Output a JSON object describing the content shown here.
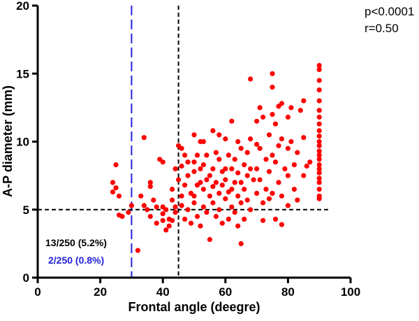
{
  "stats": {
    "p_value": "p<0.0001",
    "r_value": "r=0.50"
  },
  "annotations": {
    "black_count": "13/250 (5.2%)",
    "blue_count": "2/250 (0.8%)",
    "black_color": "#000000",
    "blue_color": "#2222dd"
  },
  "chart_data": {
    "type": "scatter",
    "title": "",
    "xlabel": "Frontal angle (deegre)",
    "ylabel": "A-P diameter (mm)",
    "xlim": [
      0,
      100
    ],
    "ylim": [
      0,
      20
    ],
    "x_ticks": [
      0,
      20,
      40,
      60,
      80,
      100
    ],
    "y_ticks": [
      0,
      5,
      10,
      15,
      20
    ],
    "grid": false,
    "point_color": "#ff0000",
    "reference_lines": [
      {
        "orientation": "vertical",
        "value": 30,
        "color": "#2222dd",
        "style": "dashed"
      },
      {
        "orientation": "vertical",
        "value": 45,
        "color": "#000000",
        "style": "dashed"
      },
      {
        "orientation": "horizontal",
        "value": 5,
        "color": "#000000",
        "style": "dashed"
      }
    ],
    "points": [
      [
        25,
        8.3
      ],
      [
        25,
        6.6
      ],
      [
        24,
        7.0
      ],
      [
        24,
        6.3
      ],
      [
        26,
        6.0
      ],
      [
        26,
        4.6
      ],
      [
        27,
        4.5
      ],
      [
        29,
        4.8
      ],
      [
        30,
        5.3
      ],
      [
        32,
        2.0
      ],
      [
        34,
        10.3
      ],
      [
        33,
        6.0
      ],
      [
        34,
        5.3
      ],
      [
        35,
        5.0
      ],
      [
        36,
        7.0
      ],
      [
        36,
        6.7
      ],
      [
        36,
        4.5
      ],
      [
        37,
        5.7
      ],
      [
        38,
        5.2
      ],
      [
        38,
        4.0
      ],
      [
        39,
        8.7
      ],
      [
        40,
        8.5
      ],
      [
        40,
        5.2
      ],
      [
        40,
        4.7
      ],
      [
        40,
        4.2
      ],
      [
        41,
        5.0
      ],
      [
        41,
        3.5
      ],
      [
        42,
        4.3
      ],
      [
        42,
        3.8
      ],
      [
        43,
        6.5
      ],
      [
        43,
        4.2
      ],
      [
        43,
        5.7
      ],
      [
        44,
        5.2
      ],
      [
        44,
        4.8
      ],
      [
        44,
        8.0
      ],
      [
        45,
        9.7
      ],
      [
        45,
        7.2
      ],
      [
        46,
        9.5
      ],
      [
        46,
        8.2
      ],
      [
        46,
        6.0
      ],
      [
        46,
        5.3
      ],
      [
        47,
        9.0
      ],
      [
        47,
        6.8
      ],
      [
        47,
        4.3
      ],
      [
        48,
        8.5
      ],
      [
        48,
        7.5
      ],
      [
        48,
        5.0
      ],
      [
        49,
        6.2
      ],
      [
        49,
        4.0
      ],
      [
        50,
        10.5
      ],
      [
        50,
        8.5
      ],
      [
        50,
        7.8
      ],
      [
        50,
        6.0
      ],
      [
        50,
        5.5
      ],
      [
        51,
        9.0
      ],
      [
        51,
        6.8
      ],
      [
        51,
        4.5
      ],
      [
        52,
        10.0
      ],
      [
        52,
        8.0
      ],
      [
        52,
        7.0
      ],
      [
        52,
        3.8
      ],
      [
        53,
        10.0
      ],
      [
        53,
        8.3
      ],
      [
        53,
        6.5
      ],
      [
        53,
        5.2
      ],
      [
        54,
        9.0
      ],
      [
        54,
        7.2
      ],
      [
        54,
        4.8
      ],
      [
        55,
        7.5
      ],
      [
        55,
        6.0
      ],
      [
        55,
        2.8
      ],
      [
        56,
        10.8
      ],
      [
        56,
        8.0
      ],
      [
        56,
        6.7
      ],
      [
        56,
        5.5
      ],
      [
        57,
        9.2
      ],
      [
        57,
        7.0
      ],
      [
        57,
        4.5
      ],
      [
        58,
        10.5
      ],
      [
        58,
        8.7
      ],
      [
        58,
        6.2
      ],
      [
        58,
        5.0
      ],
      [
        59,
        7.8
      ],
      [
        59,
        6.8
      ],
      [
        59,
        4.0
      ],
      [
        60,
        10.2
      ],
      [
        60,
        8.0
      ],
      [
        60,
        7.2
      ],
      [
        60,
        5.8
      ],
      [
        61,
        9.0
      ],
      [
        61,
        6.3
      ],
      [
        61,
        4.3
      ],
      [
        62,
        11.5
      ],
      [
        62,
        8.0
      ],
      [
        62,
        6.5
      ],
      [
        62,
        5.2
      ],
      [
        63,
        8.7
      ],
      [
        63,
        7.0
      ],
      [
        63,
        4.8
      ],
      [
        64,
        10.0
      ],
      [
        64,
        7.7
      ],
      [
        64,
        6.0
      ],
      [
        64,
        3.8
      ],
      [
        65,
        9.5
      ],
      [
        65,
        7.0
      ],
      [
        65,
        5.5
      ],
      [
        65,
        2.5
      ],
      [
        66,
        8.3
      ],
      [
        66,
        6.5
      ],
      [
        66,
        4.3
      ],
      [
        67,
        9.2
      ],
      [
        67,
        7.5
      ],
      [
        67,
        5.7
      ],
      [
        68,
        14.6
      ],
      [
        68,
        10.2
      ],
      [
        68,
        8.0
      ],
      [
        68,
        5.0
      ],
      [
        69,
        7.2
      ],
      [
        70,
        11.5
      ],
      [
        70,
        9.8
      ],
      [
        70,
        8.0
      ],
      [
        70,
        6.2
      ],
      [
        71,
        12.5
      ],
      [
        71,
        9.5
      ],
      [
        71,
        7.2
      ],
      [
        72,
        11.8
      ],
      [
        72,
        5.5
      ],
      [
        72,
        4.2
      ],
      [
        73,
        8.7
      ],
      [
        73,
        6.5
      ],
      [
        74,
        10.5
      ],
      [
        74,
        7.8
      ],
      [
        74,
        5.8
      ],
      [
        75,
        15.0
      ],
      [
        75,
        14.0
      ],
      [
        75,
        12.0
      ],
      [
        75,
        9.0
      ],
      [
        75,
        6.2
      ],
      [
        76,
        11.3
      ],
      [
        76,
        8.5
      ],
      [
        76,
        4.3
      ],
      [
        77,
        12.6
      ],
      [
        77,
        9.7
      ],
      [
        77,
        7.0
      ],
      [
        78,
        12.8
      ],
      [
        78,
        10.2
      ],
      [
        78,
        6.0
      ],
      [
        78,
        3.9
      ],
      [
        79,
        8.0
      ],
      [
        80,
        11.8
      ],
      [
        80,
        9.5
      ],
      [
        80,
        7.5
      ],
      [
        80,
        5.3
      ],
      [
        81,
        12.5
      ],
      [
        81,
        10.0
      ],
      [
        82,
        8.3
      ],
      [
        82,
        6.5
      ],
      [
        83,
        9.2
      ],
      [
        83,
        5.7
      ],
      [
        84,
        12.3
      ],
      [
        85,
        13.0
      ],
      [
        85,
        10.3
      ],
      [
        85,
        7.5
      ],
      [
        86,
        8.2
      ],
      [
        87,
        8.5
      ],
      [
        90,
        15.6
      ],
      [
        90,
        15.3
      ],
      [
        90,
        14.5
      ],
      [
        90,
        13.8
      ],
      [
        90,
        13.0
      ],
      [
        90,
        12.3
      ],
      [
        90,
        11.8
      ],
      [
        90,
        11.3
      ],
      [
        90,
        10.8
      ],
      [
        90,
        10.4
      ],
      [
        90,
        10.0
      ],
      [
        90,
        9.7
      ],
      [
        90,
        9.3
      ],
      [
        90,
        9.0
      ],
      [
        90,
        8.7
      ],
      [
        90,
        8.3
      ],
      [
        90,
        8.0
      ],
      [
        90,
        7.7
      ],
      [
        90,
        7.3
      ],
      [
        90,
        7.0
      ],
      [
        90,
        6.5
      ],
      [
        90,
        6.0
      ],
      [
        90,
        5.8
      ]
    ]
  }
}
